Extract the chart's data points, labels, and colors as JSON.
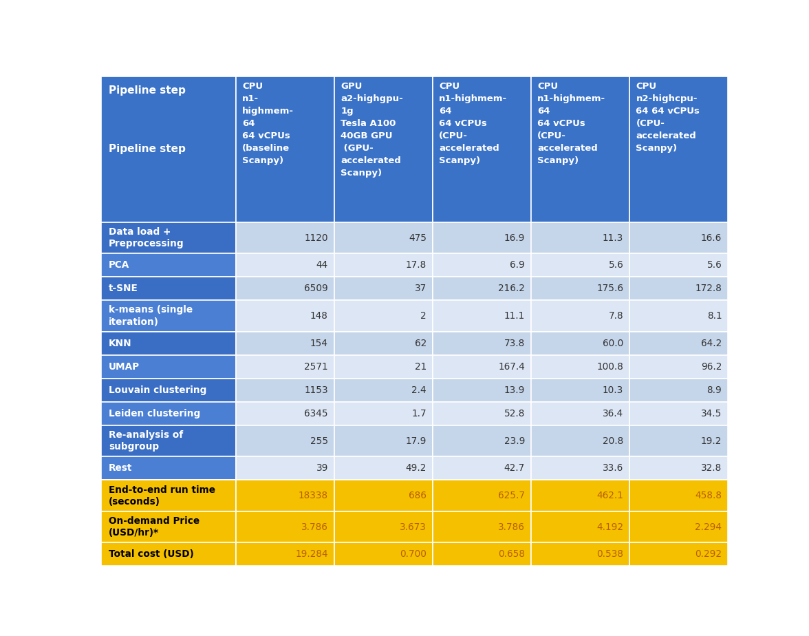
{
  "col_headers_texts": [
    "CPU\nn1-\nhighmem-\n64\n64 vCPUs\n(baseline\nScanpy)",
    "GPU\na2-highgpu-\n1g\nTesla A100\n40GB GPU\n (GPU-\naccelerated\nScanpy)",
    "CPU\nn1-highmem-\n64\n64 vCPUs\n(CPU-\naccelerated\nScanpy)",
    "CPU\nn1-highmem-\n64\n64 vCPUs\n(CPU-\naccelerated\nScanpy)",
    "CPU\nn2-highcpu-\n64 64 vCPUs\n(CPU-\naccelerated\nScanpy)"
  ],
  "rows": [
    {
      "label": "Data load +\nPreprocessing",
      "values": [
        "1120",
        "475",
        "16.9",
        "11.3",
        "16.6"
      ],
      "label_bg": "#3a6ec4",
      "data_bg": "#c5d5ea",
      "data_text": "#333333"
    },
    {
      "label": "PCA",
      "values": [
        "44",
        "17.8",
        "6.9",
        "5.6",
        "5.6"
      ],
      "label_bg": "#4a7fd4",
      "data_bg": "#dce6f5",
      "data_text": "#333333"
    },
    {
      "label": "t-SNE",
      "values": [
        "6509",
        "37",
        "216.2",
        "175.6",
        "172.8"
      ],
      "label_bg": "#3a6ec4",
      "data_bg": "#c5d5ea",
      "data_text": "#333333"
    },
    {
      "label": "k-means (single\niteration)",
      "values": [
        "148",
        "2",
        "11.1",
        "7.8",
        "8.1"
      ],
      "label_bg": "#4a7fd4",
      "data_bg": "#dce6f5",
      "data_text": "#333333"
    },
    {
      "label": "KNN",
      "values": [
        "154",
        "62",
        "73.8",
        "60.0",
        "64.2"
      ],
      "label_bg": "#3a6ec4",
      "data_bg": "#c5d5ea",
      "data_text": "#333333"
    },
    {
      "label": "UMAP",
      "values": [
        "2571",
        "21",
        "167.4",
        "100.8",
        "96.2"
      ],
      "label_bg": "#4a7fd4",
      "data_bg": "#dce6f5",
      "data_text": "#333333"
    },
    {
      "label": "Louvain clustering",
      "values": [
        "1153",
        "2.4",
        "13.9",
        "10.3",
        "8.9"
      ],
      "label_bg": "#3a6ec4",
      "data_bg": "#c5d5ea",
      "data_text": "#333333"
    },
    {
      "label": "Leiden clustering",
      "values": [
        "6345",
        "1.7",
        "52.8",
        "36.4",
        "34.5"
      ],
      "label_bg": "#4a7fd4",
      "data_bg": "#dce6f5",
      "data_text": "#333333"
    },
    {
      "label": "Re-analysis of\nsubgroup",
      "values": [
        "255",
        "17.9",
        "23.9",
        "20.8",
        "19.2"
      ],
      "label_bg": "#3a6ec4",
      "data_bg": "#c5d5ea",
      "data_text": "#333333"
    },
    {
      "label": "Rest",
      "values": [
        "39",
        "49.2",
        "42.7",
        "33.6",
        "32.8"
      ],
      "label_bg": "#4a7fd4",
      "data_bg": "#dce6f5",
      "data_text": "#333333"
    },
    {
      "label": "End-to-end run time\n(seconds)",
      "values": [
        "18338",
        "686",
        "625.7",
        "462.1",
        "458.8"
      ],
      "label_bg": "#f5c000",
      "data_bg": "#f5c000",
      "data_text": "#b86000"
    },
    {
      "label": "On-demand Price\n(USD/hr)*",
      "values": [
        "3.786",
        "3.673",
        "3.786",
        "4.192",
        "2.294"
      ],
      "label_bg": "#f5c000",
      "data_bg": "#f5c000",
      "data_text": "#b86000"
    },
    {
      "label": "Total cost (USD)",
      "values": [
        "19.284",
        "0.700",
        "0.658",
        "0.538",
        "0.292"
      ],
      "label_bg": "#f5c000",
      "data_bg": "#f5c000",
      "data_text": "#b86000"
    }
  ],
  "header_bg": "#3a72c8",
  "header_text_color": "#ffffff",
  "label_text_color_blue": "#ffffff",
  "label_text_color_gold": "#000000",
  "border_color": "#ffffff",
  "pipeline_step_label": "Pipeline step"
}
